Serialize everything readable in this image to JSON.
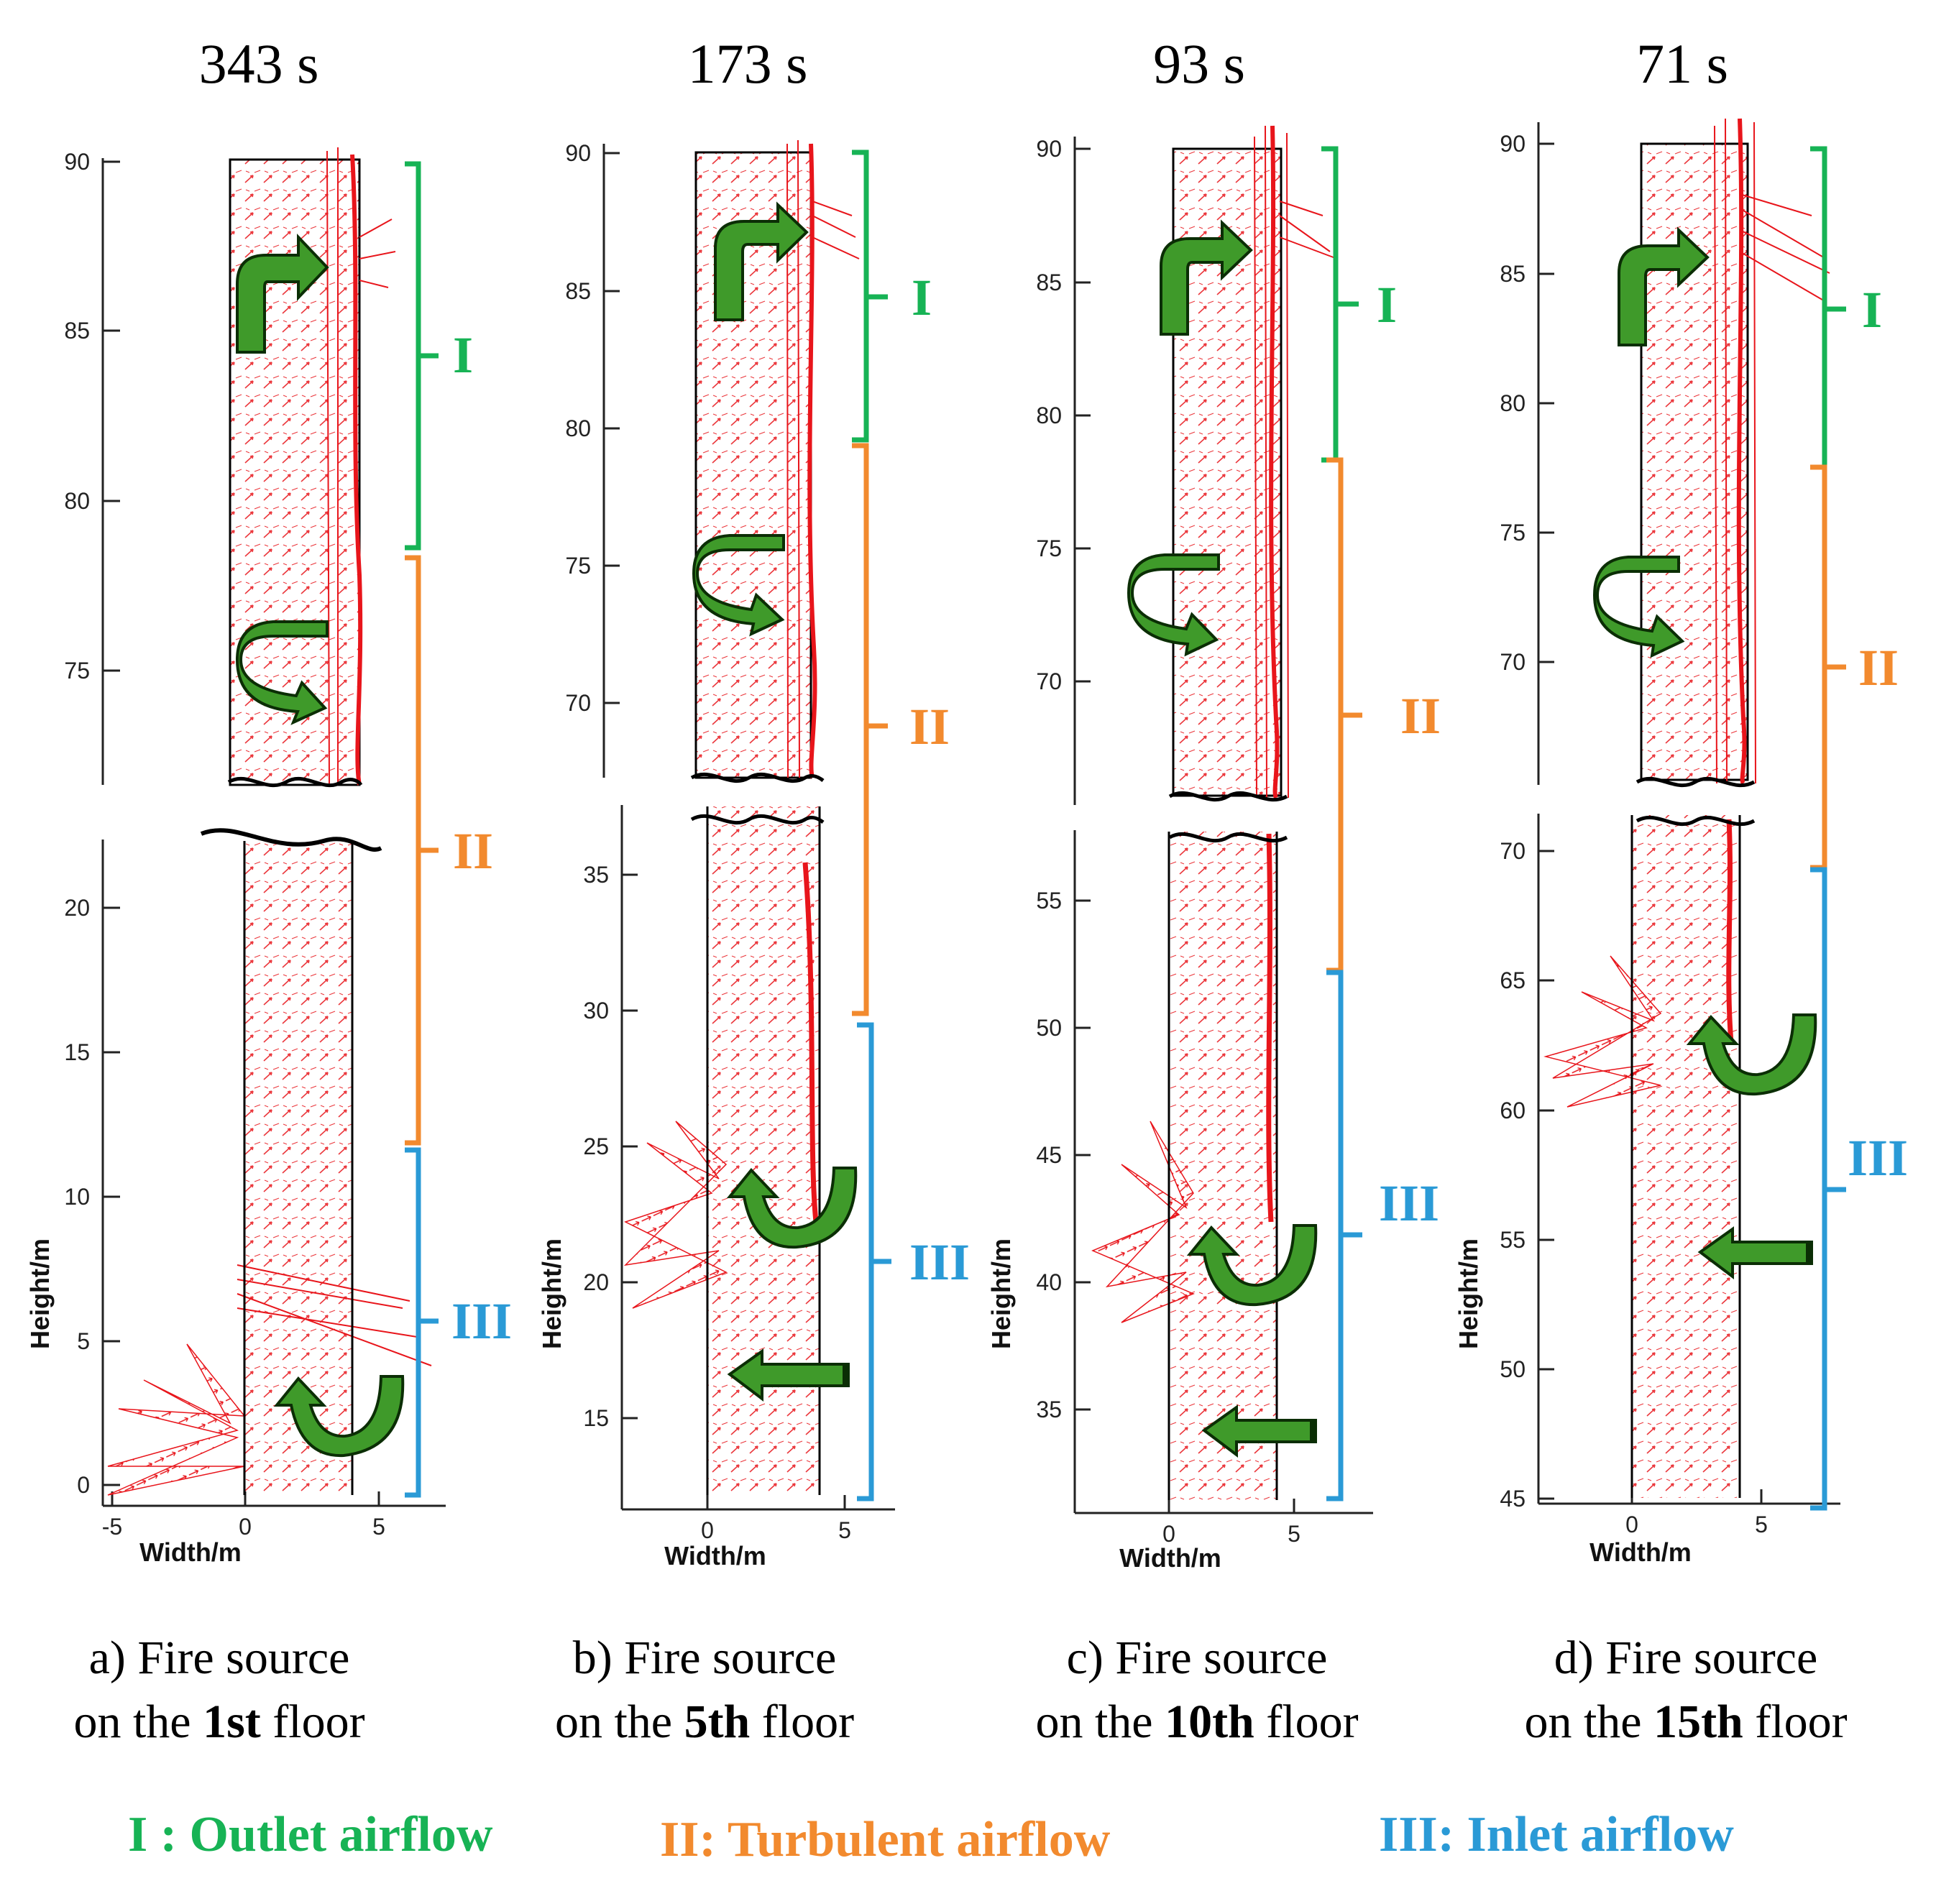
{
  "colors": {
    "outlet": "#17b355",
    "turbulent": "#f28a2e",
    "inlet": "#2a9ad6",
    "vector": "#e8151b",
    "arrow_fill": "#3f9a2a",
    "arrow_stroke": "#0b2e05"
  },
  "axes": {
    "xlabel": "Width/m",
    "ylabel": "Height/m"
  },
  "panels": [
    {
      "time": "343 s",
      "caption_pre": "a) Fire source",
      "caption_on": "on the ",
      "caption_floor": "1st",
      "caption_post": " floor",
      "upper_y_ticks": [
        "90",
        "85",
        "80",
        "75"
      ],
      "lower_y_ticks": [
        "20",
        "15",
        "10",
        "5",
        "0"
      ],
      "x_ticks": [
        "-5",
        "0",
        "5"
      ],
      "zones": [
        "I",
        "II",
        "III"
      ]
    },
    {
      "time": "173 s",
      "caption_pre": "b) Fire source",
      "caption_on": "on the ",
      "caption_floor": "5th",
      "caption_post": " floor",
      "upper_y_ticks": [
        "90",
        "85",
        "80",
        "75",
        "70"
      ],
      "lower_y_ticks": [
        "35",
        "30",
        "25",
        "20",
        "15"
      ],
      "x_ticks": [
        "0",
        "5"
      ],
      "zones": [
        "I",
        "II",
        "III"
      ]
    },
    {
      "time": "93 s",
      "caption_pre": "c) Fire source",
      "caption_on": "on the ",
      "caption_floor": "10th",
      "caption_post": " floor",
      "upper_y_ticks": [
        "90",
        "85",
        "80",
        "75",
        "70"
      ],
      "lower_y_ticks": [
        "55",
        "50",
        "45",
        "40",
        "35"
      ],
      "x_ticks": [
        "0",
        "5"
      ],
      "zones": [
        "I",
        "II",
        "III"
      ]
    },
    {
      "time": "71 s",
      "caption_pre": "d) Fire source",
      "caption_on": "on the ",
      "caption_floor": "15th",
      "caption_post": " floor",
      "upper_y_ticks": [
        "90",
        "85",
        "80",
        "75",
        "70"
      ],
      "lower_y_ticks": [
        "70",
        "65",
        "60",
        "55",
        "50",
        "45"
      ],
      "x_ticks": [
        "0",
        "5"
      ],
      "zones": [
        "I",
        "II",
        "III"
      ]
    }
  ],
  "legend": {
    "outlet": "I : Outlet airflow",
    "turbulent": "II: Turbulent airflow",
    "inlet": "III: Inlet airflow"
  }
}
